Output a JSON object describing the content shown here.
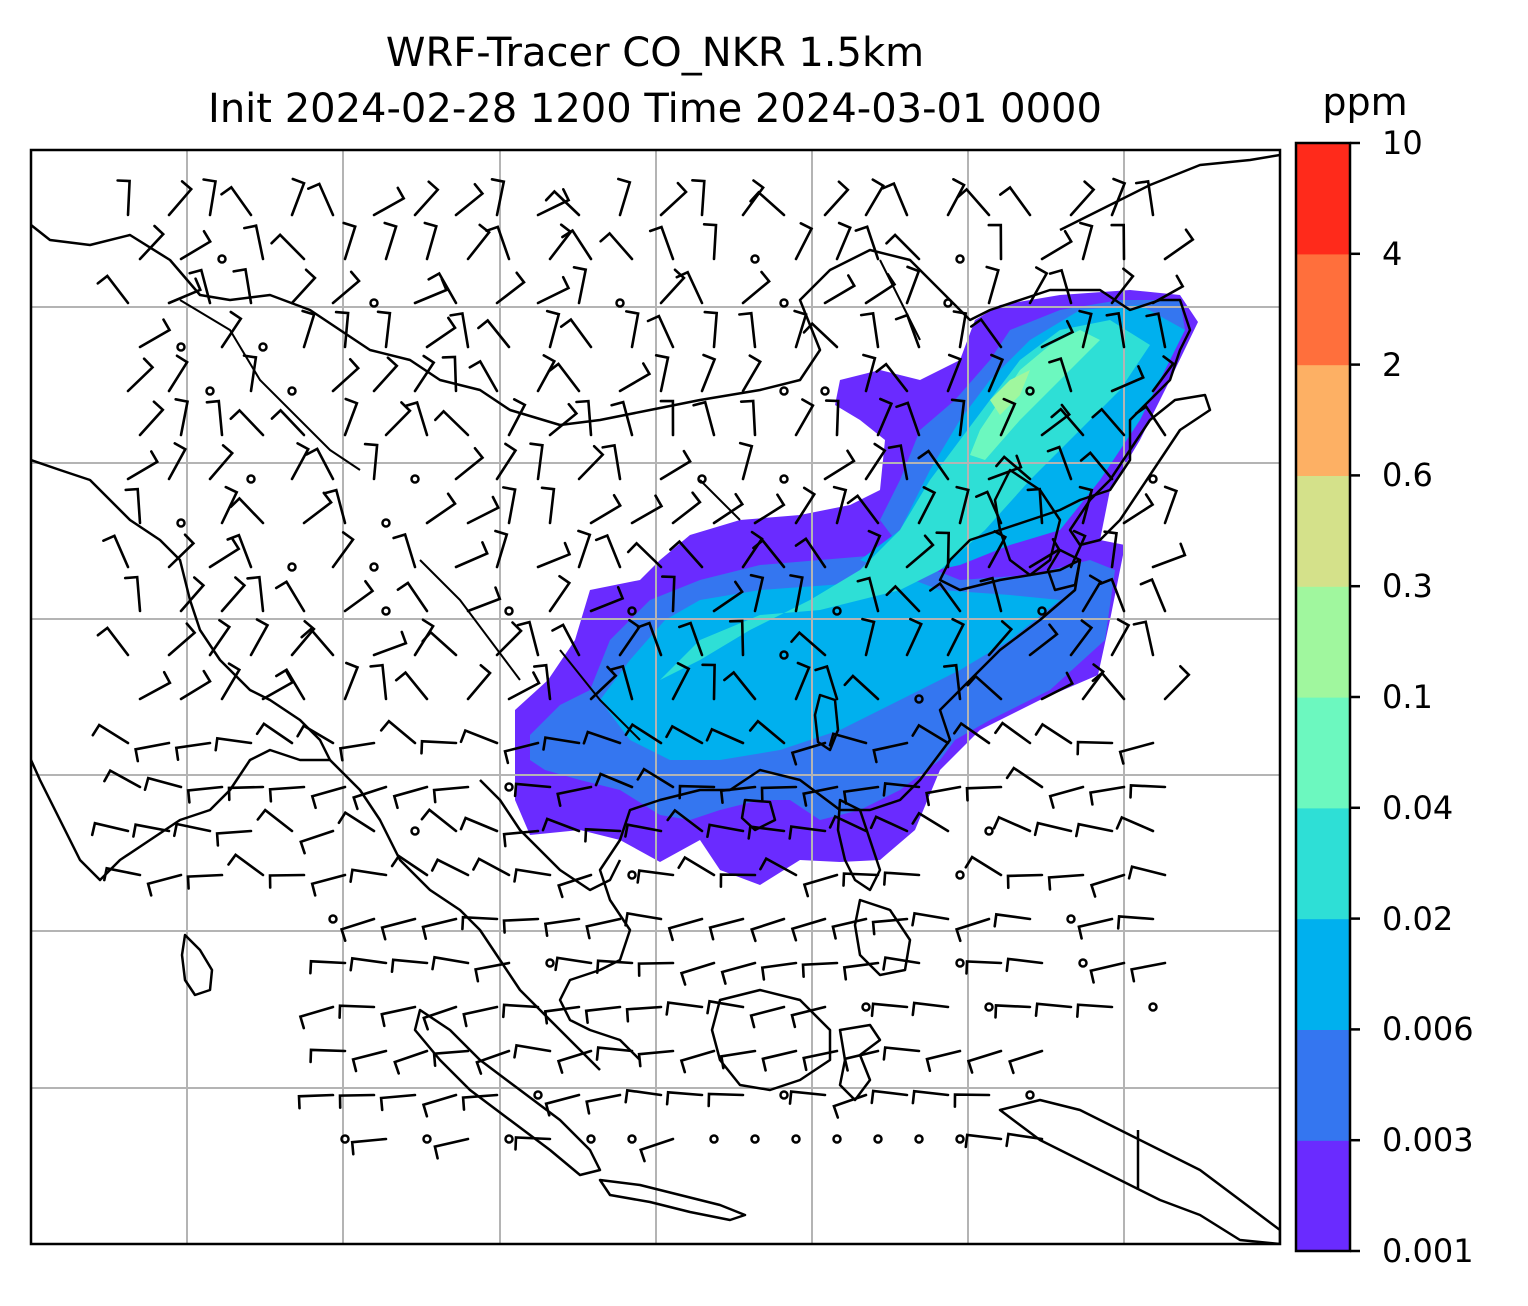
{
  "title": {
    "line1": "WRF-Tracer CO_NKR 1.5km",
    "line2": "Init 2024-02-28 1200 Time 2024-03-01 0000"
  },
  "colorbar": {
    "unit": "ppm",
    "levels": [
      "0.001",
      "0.003",
      "0.006",
      "0.02",
      "0.04",
      "0.1",
      "0.3",
      "0.6",
      "2",
      "4",
      "10"
    ],
    "colors": [
      "#6a2bff",
      "#3476f0",
      "#00b0ee",
      "#2edfd6",
      "#6cf8bf",
      "#a0f79e",
      "#d4e18a",
      "#fdb064",
      "#ff6f3c",
      "#ff2a1b"
    ]
  },
  "map": {
    "frame_color": "#000000",
    "grid_color": "#b4b4b4",
    "coast_color": "#000000",
    "barb_color": "#000000"
  }
}
